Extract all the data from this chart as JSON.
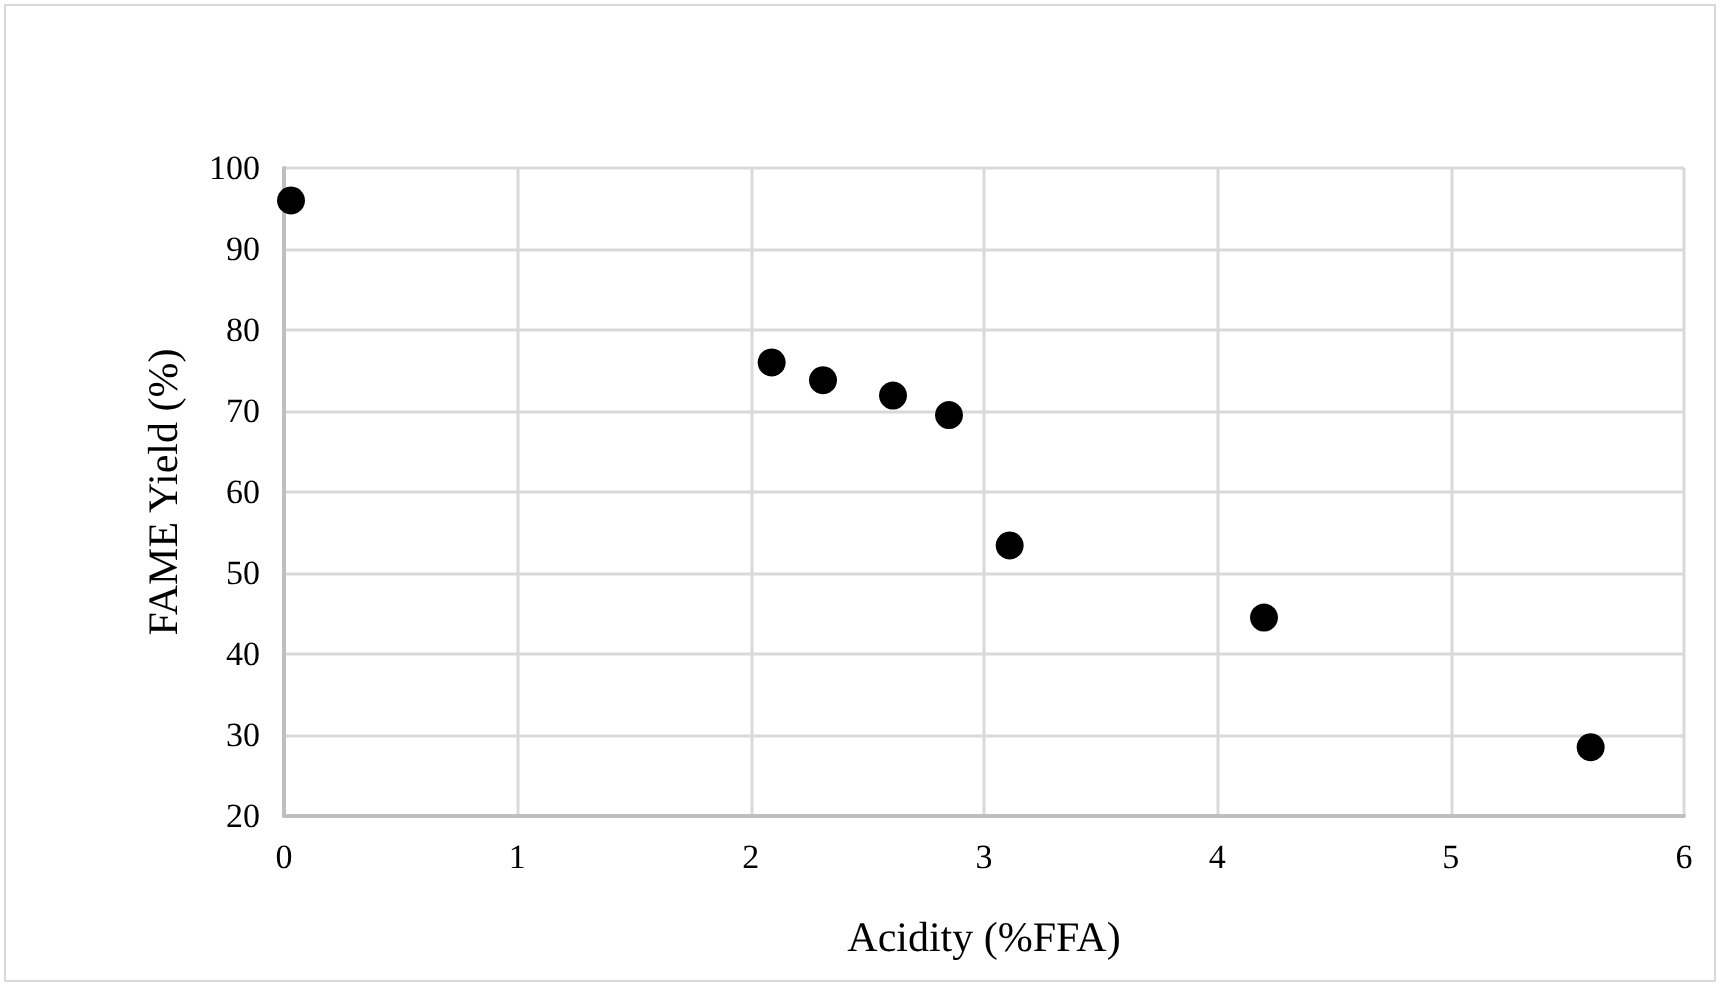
{
  "chart_data": {
    "type": "scatter",
    "xlabel": "Acidity (%FFA)",
    "ylabel": "FAME Yield (%)",
    "x": [
      0.03,
      2.09,
      2.31,
      2.61,
      2.85,
      3.11,
      4.2,
      5.6
    ],
    "values": [
      96,
      76,
      73.8,
      71.9,
      69.5,
      53.4,
      44.5,
      28.5
    ],
    "color": "#000000",
    "marker": "circle",
    "xlim": [
      0,
      6
    ],
    "xticks": [
      0,
      1,
      2,
      3,
      4,
      5,
      6
    ],
    "ylim": [
      20,
      100
    ],
    "yticks": [
      20,
      30,
      40,
      50,
      60,
      70,
      80,
      90,
      100
    ],
    "grid": true
  }
}
